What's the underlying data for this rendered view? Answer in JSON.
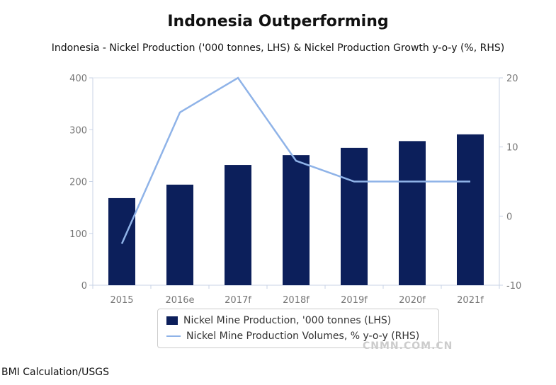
{
  "chart_data": {
    "type": "bar+line",
    "title": "Indonesia Outperforming",
    "subtitle": "Indonesia - Nickel Production ('000 tonnes, LHS) & Nickel Production Growth y-o-y (%, RHS)",
    "categories": [
      "2015",
      "2016e",
      "2017f",
      "2018f",
      "2019f",
      "2020f",
      "2021f"
    ],
    "series": [
      {
        "name": "Nickel Mine Production, '000 tonnes (LHS)",
        "type": "bar",
        "axis": "left",
        "color": "#0c1f5b",
        "values": [
          168,
          194,
          232,
          251,
          265,
          278,
          291
        ]
      },
      {
        "name": "Nickel Mine Production Volumes, % y-o-y (RHS)",
        "type": "line",
        "axis": "right",
        "color": "#8fb3e8",
        "values": [
          -4,
          15,
          20,
          8,
          5,
          5,
          5
        ]
      }
    ],
    "ylim_left": [
      0,
      400
    ],
    "yticks_left": [
      "0",
      "100",
      "200",
      "300",
      "400"
    ],
    "ylim_right": [
      -10,
      20
    ],
    "yticks_right": [
      "-10",
      "0",
      "10",
      "20"
    ],
    "grid": false,
    "legend": "bottom"
  },
  "source": "BMI Calculation/USGS",
  "watermark": "CNMN.COM.CN"
}
